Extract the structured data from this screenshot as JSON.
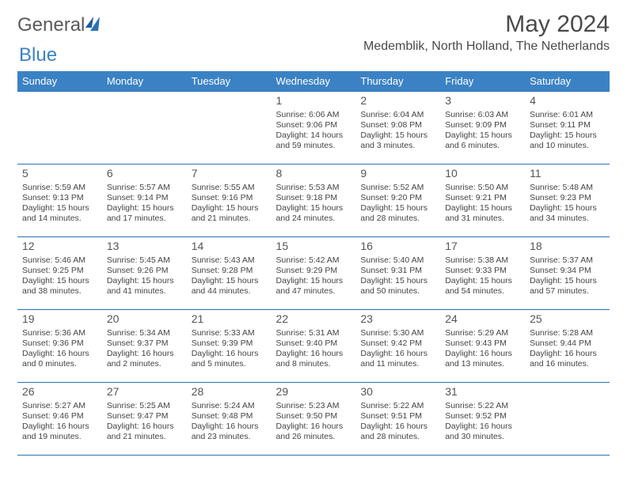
{
  "brand": {
    "word1": "General",
    "word2": "Blue"
  },
  "title": "May 2024",
  "location": "Medemblik, North Holland, The Netherlands",
  "colors": {
    "header_bg": "#3b82c4",
    "border": "#2e72b4",
    "text": "#444444",
    "title_text": "#4a4a4a"
  },
  "weekdays": [
    "Sunday",
    "Monday",
    "Tuesday",
    "Wednesday",
    "Thursday",
    "Friday",
    "Saturday"
  ],
  "weeks": [
    [
      null,
      null,
      null,
      {
        "n": "1",
        "sr": "Sunrise: 6:06 AM",
        "ss": "Sunset: 9:06 PM",
        "dl": "Daylight: 14 hours and 59 minutes."
      },
      {
        "n": "2",
        "sr": "Sunrise: 6:04 AM",
        "ss": "Sunset: 9:08 PM",
        "dl": "Daylight: 15 hours and 3 minutes."
      },
      {
        "n": "3",
        "sr": "Sunrise: 6:03 AM",
        "ss": "Sunset: 9:09 PM",
        "dl": "Daylight: 15 hours and 6 minutes."
      },
      {
        "n": "4",
        "sr": "Sunrise: 6:01 AM",
        "ss": "Sunset: 9:11 PM",
        "dl": "Daylight: 15 hours and 10 minutes."
      }
    ],
    [
      {
        "n": "5",
        "sr": "Sunrise: 5:59 AM",
        "ss": "Sunset: 9:13 PM",
        "dl": "Daylight: 15 hours and 14 minutes."
      },
      {
        "n": "6",
        "sr": "Sunrise: 5:57 AM",
        "ss": "Sunset: 9:14 PM",
        "dl": "Daylight: 15 hours and 17 minutes."
      },
      {
        "n": "7",
        "sr": "Sunrise: 5:55 AM",
        "ss": "Sunset: 9:16 PM",
        "dl": "Daylight: 15 hours and 21 minutes."
      },
      {
        "n": "8",
        "sr": "Sunrise: 5:53 AM",
        "ss": "Sunset: 9:18 PM",
        "dl": "Daylight: 15 hours and 24 minutes."
      },
      {
        "n": "9",
        "sr": "Sunrise: 5:52 AM",
        "ss": "Sunset: 9:20 PM",
        "dl": "Daylight: 15 hours and 28 minutes."
      },
      {
        "n": "10",
        "sr": "Sunrise: 5:50 AM",
        "ss": "Sunset: 9:21 PM",
        "dl": "Daylight: 15 hours and 31 minutes."
      },
      {
        "n": "11",
        "sr": "Sunrise: 5:48 AM",
        "ss": "Sunset: 9:23 PM",
        "dl": "Daylight: 15 hours and 34 minutes."
      }
    ],
    [
      {
        "n": "12",
        "sr": "Sunrise: 5:46 AM",
        "ss": "Sunset: 9:25 PM",
        "dl": "Daylight: 15 hours and 38 minutes."
      },
      {
        "n": "13",
        "sr": "Sunrise: 5:45 AM",
        "ss": "Sunset: 9:26 PM",
        "dl": "Daylight: 15 hours and 41 minutes."
      },
      {
        "n": "14",
        "sr": "Sunrise: 5:43 AM",
        "ss": "Sunset: 9:28 PM",
        "dl": "Daylight: 15 hours and 44 minutes."
      },
      {
        "n": "15",
        "sr": "Sunrise: 5:42 AM",
        "ss": "Sunset: 9:29 PM",
        "dl": "Daylight: 15 hours and 47 minutes."
      },
      {
        "n": "16",
        "sr": "Sunrise: 5:40 AM",
        "ss": "Sunset: 9:31 PM",
        "dl": "Daylight: 15 hours and 50 minutes."
      },
      {
        "n": "17",
        "sr": "Sunrise: 5:38 AM",
        "ss": "Sunset: 9:33 PM",
        "dl": "Daylight: 15 hours and 54 minutes."
      },
      {
        "n": "18",
        "sr": "Sunrise: 5:37 AM",
        "ss": "Sunset: 9:34 PM",
        "dl": "Daylight: 15 hours and 57 minutes."
      }
    ],
    [
      {
        "n": "19",
        "sr": "Sunrise: 5:36 AM",
        "ss": "Sunset: 9:36 PM",
        "dl": "Daylight: 16 hours and 0 minutes."
      },
      {
        "n": "20",
        "sr": "Sunrise: 5:34 AM",
        "ss": "Sunset: 9:37 PM",
        "dl": "Daylight: 16 hours and 2 minutes."
      },
      {
        "n": "21",
        "sr": "Sunrise: 5:33 AM",
        "ss": "Sunset: 9:39 PM",
        "dl": "Daylight: 16 hours and 5 minutes."
      },
      {
        "n": "22",
        "sr": "Sunrise: 5:31 AM",
        "ss": "Sunset: 9:40 PM",
        "dl": "Daylight: 16 hours and 8 minutes."
      },
      {
        "n": "23",
        "sr": "Sunrise: 5:30 AM",
        "ss": "Sunset: 9:42 PM",
        "dl": "Daylight: 16 hours and 11 minutes."
      },
      {
        "n": "24",
        "sr": "Sunrise: 5:29 AM",
        "ss": "Sunset: 9:43 PM",
        "dl": "Daylight: 16 hours and 13 minutes."
      },
      {
        "n": "25",
        "sr": "Sunrise: 5:28 AM",
        "ss": "Sunset: 9:44 PM",
        "dl": "Daylight: 16 hours and 16 minutes."
      }
    ],
    [
      {
        "n": "26",
        "sr": "Sunrise: 5:27 AM",
        "ss": "Sunset: 9:46 PM",
        "dl": "Daylight: 16 hours and 19 minutes."
      },
      {
        "n": "27",
        "sr": "Sunrise: 5:25 AM",
        "ss": "Sunset: 9:47 PM",
        "dl": "Daylight: 16 hours and 21 minutes."
      },
      {
        "n": "28",
        "sr": "Sunrise: 5:24 AM",
        "ss": "Sunset: 9:48 PM",
        "dl": "Daylight: 16 hours and 23 minutes."
      },
      {
        "n": "29",
        "sr": "Sunrise: 5:23 AM",
        "ss": "Sunset: 9:50 PM",
        "dl": "Daylight: 16 hours and 26 minutes."
      },
      {
        "n": "30",
        "sr": "Sunrise: 5:22 AM",
        "ss": "Sunset: 9:51 PM",
        "dl": "Daylight: 16 hours and 28 minutes."
      },
      {
        "n": "31",
        "sr": "Sunrise: 5:22 AM",
        "ss": "Sunset: 9:52 PM",
        "dl": "Daylight: 16 hours and 30 minutes."
      },
      null
    ]
  ]
}
